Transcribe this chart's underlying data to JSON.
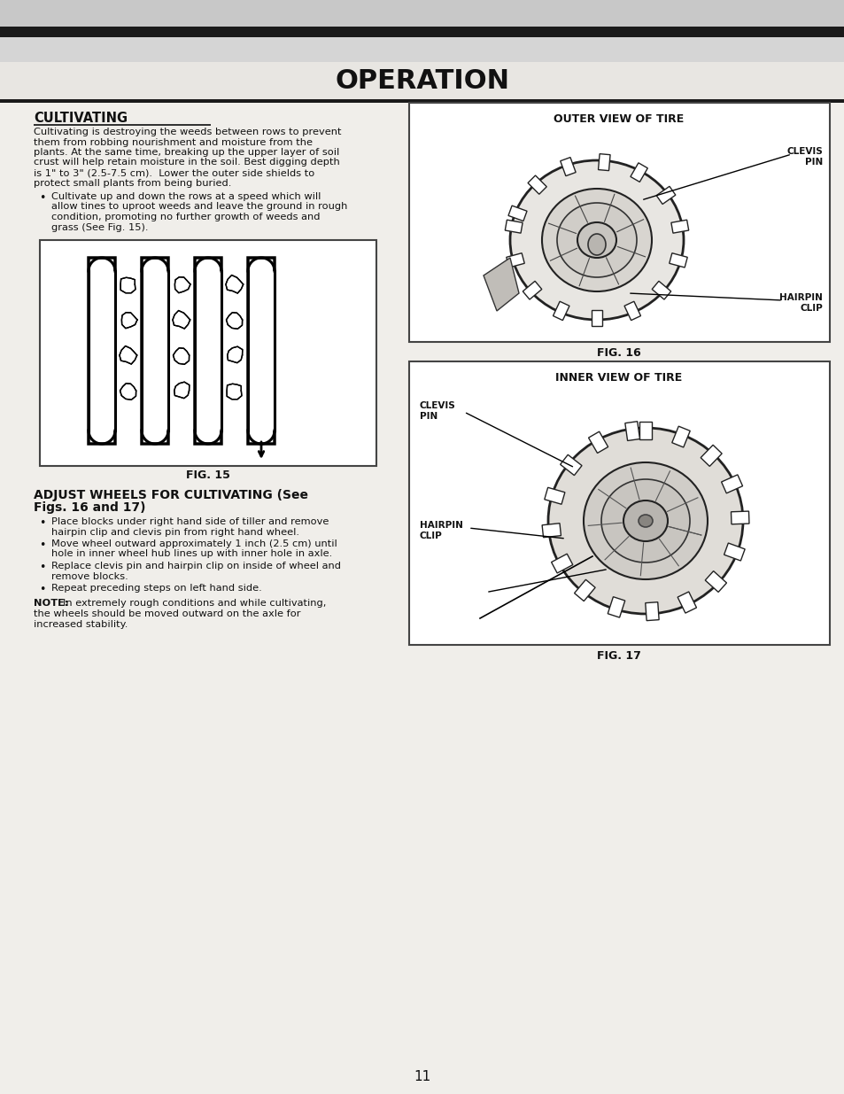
{
  "title": "OPERATION",
  "bg_color": "#f0eeea",
  "page_number": "11",
  "section1_title": "CULTIVATING",
  "section1_body_lines": [
    "Cultivating is destroying the weeds between rows to prevent",
    "them from robbing nourishment and moisture from the",
    "plants. At the same time, breaking up the upper layer of soil",
    "crust will help retain moisture in the soil. Best digging depth",
    "is 1\" to 3\" (2.5-7.5 cm).  Lower the outer side shields to",
    "protect small plants from being buried."
  ],
  "section1_bullet": [
    "Cultivate up and down the rows at a speed which will",
    "allow tines to uproot weeds and leave the ground in rough",
    "condition, promoting no further growth of weeds and",
    "grass (See Fig. 15)."
  ],
  "fig15_caption": "FIG. 15",
  "fig16_caption": "FIG. 16",
  "fig17_caption": "FIG. 17",
  "fig16_title": "OUTER VIEW OF TIRE",
  "fig17_title": "INNER VIEW OF TIRE",
  "fig16_label1": "CLEVIS\nPIN",
  "fig16_label2": "HAIRPIN\nCLIP",
  "fig17_label1": "CLEVIS\nPIN",
  "fig17_label2": "HAIRPIN\nCLIP",
  "section2_title_line1": "ADJUST WHEELS FOR CULTIVATING (See",
  "section2_title_line2": "Figs. 16 and 17)",
  "section2_bullets": [
    [
      "Place blocks under right hand side of tiller and remove",
      "hairpin clip and clevis pin from right hand wheel."
    ],
    [
      "Move wheel outward approximately 1 inch (2.5 cm) until",
      "hole in inner wheel hub lines up with inner hole in axle."
    ],
    [
      "Replace clevis pin and hairpin clip on inside of wheel and",
      "remove blocks."
    ],
    [
      "Repeat preceding steps on left hand side."
    ]
  ],
  "note_bold": "NOTE:",
  "note_rest": " In extremely rough conditions and while cultivating,\nthe wheels should be moved outward on the axle for\nincreased stability.",
  "header_bar_color": "#1a1a1a",
  "text_color": "#111111",
  "box_border_color": "#444444",
  "header_top_color": "#cccccc"
}
